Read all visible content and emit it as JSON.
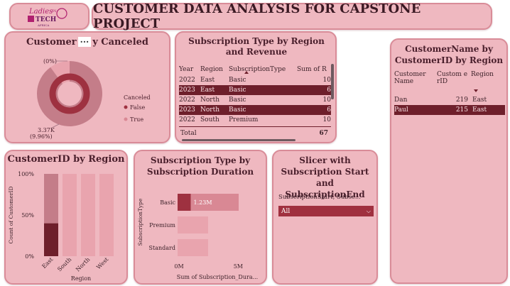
{
  "logo": {
    "line1": "Ladies",
    "line2": "IN",
    "line3": "TECH",
    "line4": "AFRICA"
  },
  "header": {
    "title": "CUSTOMER DATA ANALYSIS FOR CAPSTONE PROJECT"
  },
  "donut": {
    "title_left": "Customer",
    "title_right": "y Canceled",
    "more_label": "···",
    "label_top": "(0%)",
    "label_bottom_value": "3.37K",
    "label_bottom_pct": "(9.96%)",
    "legend_title": "Canceled",
    "legend": [
      {
        "label": "False",
        "color": "#9e3140"
      },
      {
        "label": "True",
        "color": "#d98894"
      }
    ]
  },
  "subtable": {
    "title": "Subscription Type by Region and Revenue",
    "headers": [
      "Year",
      "Region",
      "SubscriptionType",
      "Sum of R"
    ],
    "rows": [
      {
        "year": "2022",
        "region": "East",
        "type": "Basic",
        "sum": "10",
        "hl": false
      },
      {
        "year": "2023",
        "region": "East",
        "type": "Basic",
        "sum": "6",
        "hl": true
      },
      {
        "year": "2022",
        "region": "North",
        "type": "Basic",
        "sum": "10",
        "hl": false
      },
      {
        "year": "2023",
        "region": "North",
        "type": "Basic",
        "sum": "6",
        "hl": true
      },
      {
        "year": "2022",
        "region": "South",
        "type": "Premium",
        "sum": "10",
        "hl": false
      }
    ],
    "total_label": "Total",
    "total_value": "67"
  },
  "custtable": {
    "title": "CustomerName by CustomerID by Region",
    "headers": [
      "Customer Name",
      "Custom erID",
      "Region"
    ],
    "rows": [
      {
        "name": "Dan",
        "id": "219",
        "region": "East",
        "hl": false
      },
      {
        "name": "Paul",
        "id": "215",
        "region": "East",
        "hl": true
      }
    ]
  },
  "region_chart": {
    "title": "CustomerID by Region"
  },
  "duration_chart": {
    "title": "Subscription Type by Subscription Duration"
  },
  "slicer": {
    "title": "Slicer with Subscription Start and SubscriptionEnd",
    "field_label": "SubscriptionStart, Subsc...",
    "selected": "All"
  },
  "colors": {
    "dark": "#6e1f2b",
    "mid": "#c47d89",
    "light": "#e9a4ae",
    "bar_dark": "#9e3140"
  },
  "chart_data": [
    {
      "type": "pie",
      "variant": "donut",
      "categories": [
        "False",
        "True"
      ],
      "values": [
        90.04,
        9.96
      ],
      "legend_title": "Canceled"
    },
    {
      "type": "bar",
      "stacked": "100%",
      "categories": [
        "East",
        "South",
        "North",
        "West"
      ],
      "series": [
        {
          "values": [
            40,
            0,
            0,
            0
          ],
          "color": "#6e1f2b"
        },
        {
          "values": [
            60,
            100,
            100,
            100
          ],
          "color": "#c47d89"
        }
      ],
      "ylabel": "Count of CustomerID",
      "xlabel": "Region",
      "yticks": [
        "0%",
        "50%",
        "100%"
      ],
      "ylim": [
        0,
        100
      ]
    },
    {
      "type": "bar",
      "orientation": "horizontal",
      "categories": [
        "Basic",
        "Premium",
        "Standard"
      ],
      "values": [
        1.23,
        0.6,
        0.6
      ],
      "data_labels": [
        "1.23M",
        "",
        ""
      ],
      "ylabel": "SubscriptionType",
      "xlabel": "Sum of Subscription_Dura...",
      "xticks": [
        "0M",
        "5M"
      ],
      "xlim": [
        0,
        6
      ]
    }
  ]
}
